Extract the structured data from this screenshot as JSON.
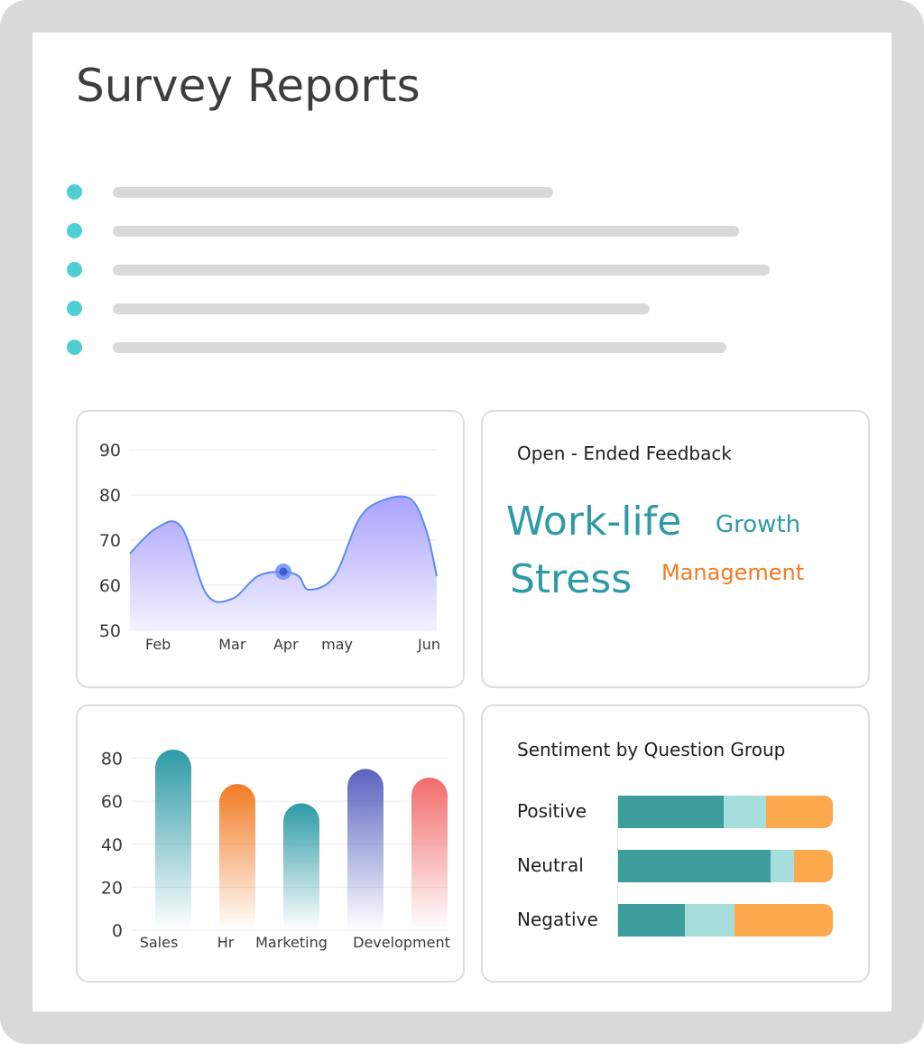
{
  "page": {
    "title": "Survey Reports"
  },
  "bullet_list": {
    "dot_color": "#4fcfd4",
    "placeholder_color": "#d9d9d9",
    "count": 5
  },
  "line_card": {
    "chart_data": {
      "type": "area",
      "x": [
        "Feb",
        "Mar",
        "Apr",
        "may",
        "Jun"
      ],
      "y_ticks": [
        90,
        80,
        70,
        60,
        50
      ],
      "ylim": [
        50,
        90
      ],
      "grid": true,
      "highlight": {
        "x": "Apr",
        "y": 63
      },
      "series": [
        {
          "points": [
            [
              0.0,
              67
            ],
            [
              0.5,
              72.5
            ],
            [
              1.0,
              73
            ],
            [
              1.5,
              58
            ],
            [
              2.0,
              57
            ],
            [
              2.5,
              62
            ],
            [
              3.0,
              63
            ],
            [
              3.3,
              62
            ],
            [
              3.5,
              59
            ],
            [
              4.0,
              62
            ],
            [
              4.5,
              75
            ],
            [
              5.0,
              79
            ],
            [
              5.5,
              79
            ],
            [
              5.8,
              72
            ],
            [
              6.0,
              62
            ]
          ]
        }
      ],
      "colors": {
        "line": "#5b8def",
        "fill_top": "#a9a3ff",
        "fill_bottom": "#f3f1ff",
        "highlight": "#3d5bd9"
      }
    }
  },
  "feedback_card": {
    "title": "Open - Ended Feedback",
    "words": [
      {
        "text": "Work-life",
        "color": "#2e9aa6"
      },
      {
        "text": "Growth",
        "color": "#2e9aa6"
      },
      {
        "text": "Stress",
        "color": "#2e9aa6"
      },
      {
        "text": "Management",
        "color": "#f27b25"
      }
    ]
  },
  "bar_card": {
    "chart_data": {
      "type": "bar",
      "categories": [
        "Sales",
        "Hr",
        "Marketing",
        "Development",
        ""
      ],
      "values": [
        84,
        68,
        59,
        75,
        71
      ],
      "y_ticks": [
        80,
        60,
        40,
        20,
        0
      ],
      "ylim": [
        0,
        84
      ],
      "grid": true,
      "colors": [
        "#2e9aa6",
        "#f27b25",
        "#2e9aa6",
        "#5a63c0",
        "#f26b6b"
      ]
    }
  },
  "sentiment_card": {
    "title": "Sentiment by Question Group",
    "chart_data": {
      "type": "bar",
      "orientation": "horizontal",
      "stacked": true,
      "categories": [
        "Positive",
        "Neutral",
        "Negative"
      ],
      "series": [
        {
          "values": [
            49,
            71,
            31
          ],
          "color": "#3d9e9c"
        },
        {
          "values": [
            20,
            11,
            23
          ],
          "color": "#a6dedd"
        },
        {
          "values": [
            31,
            18,
            46
          ],
          "color": "#fca84d"
        }
      ]
    }
  }
}
